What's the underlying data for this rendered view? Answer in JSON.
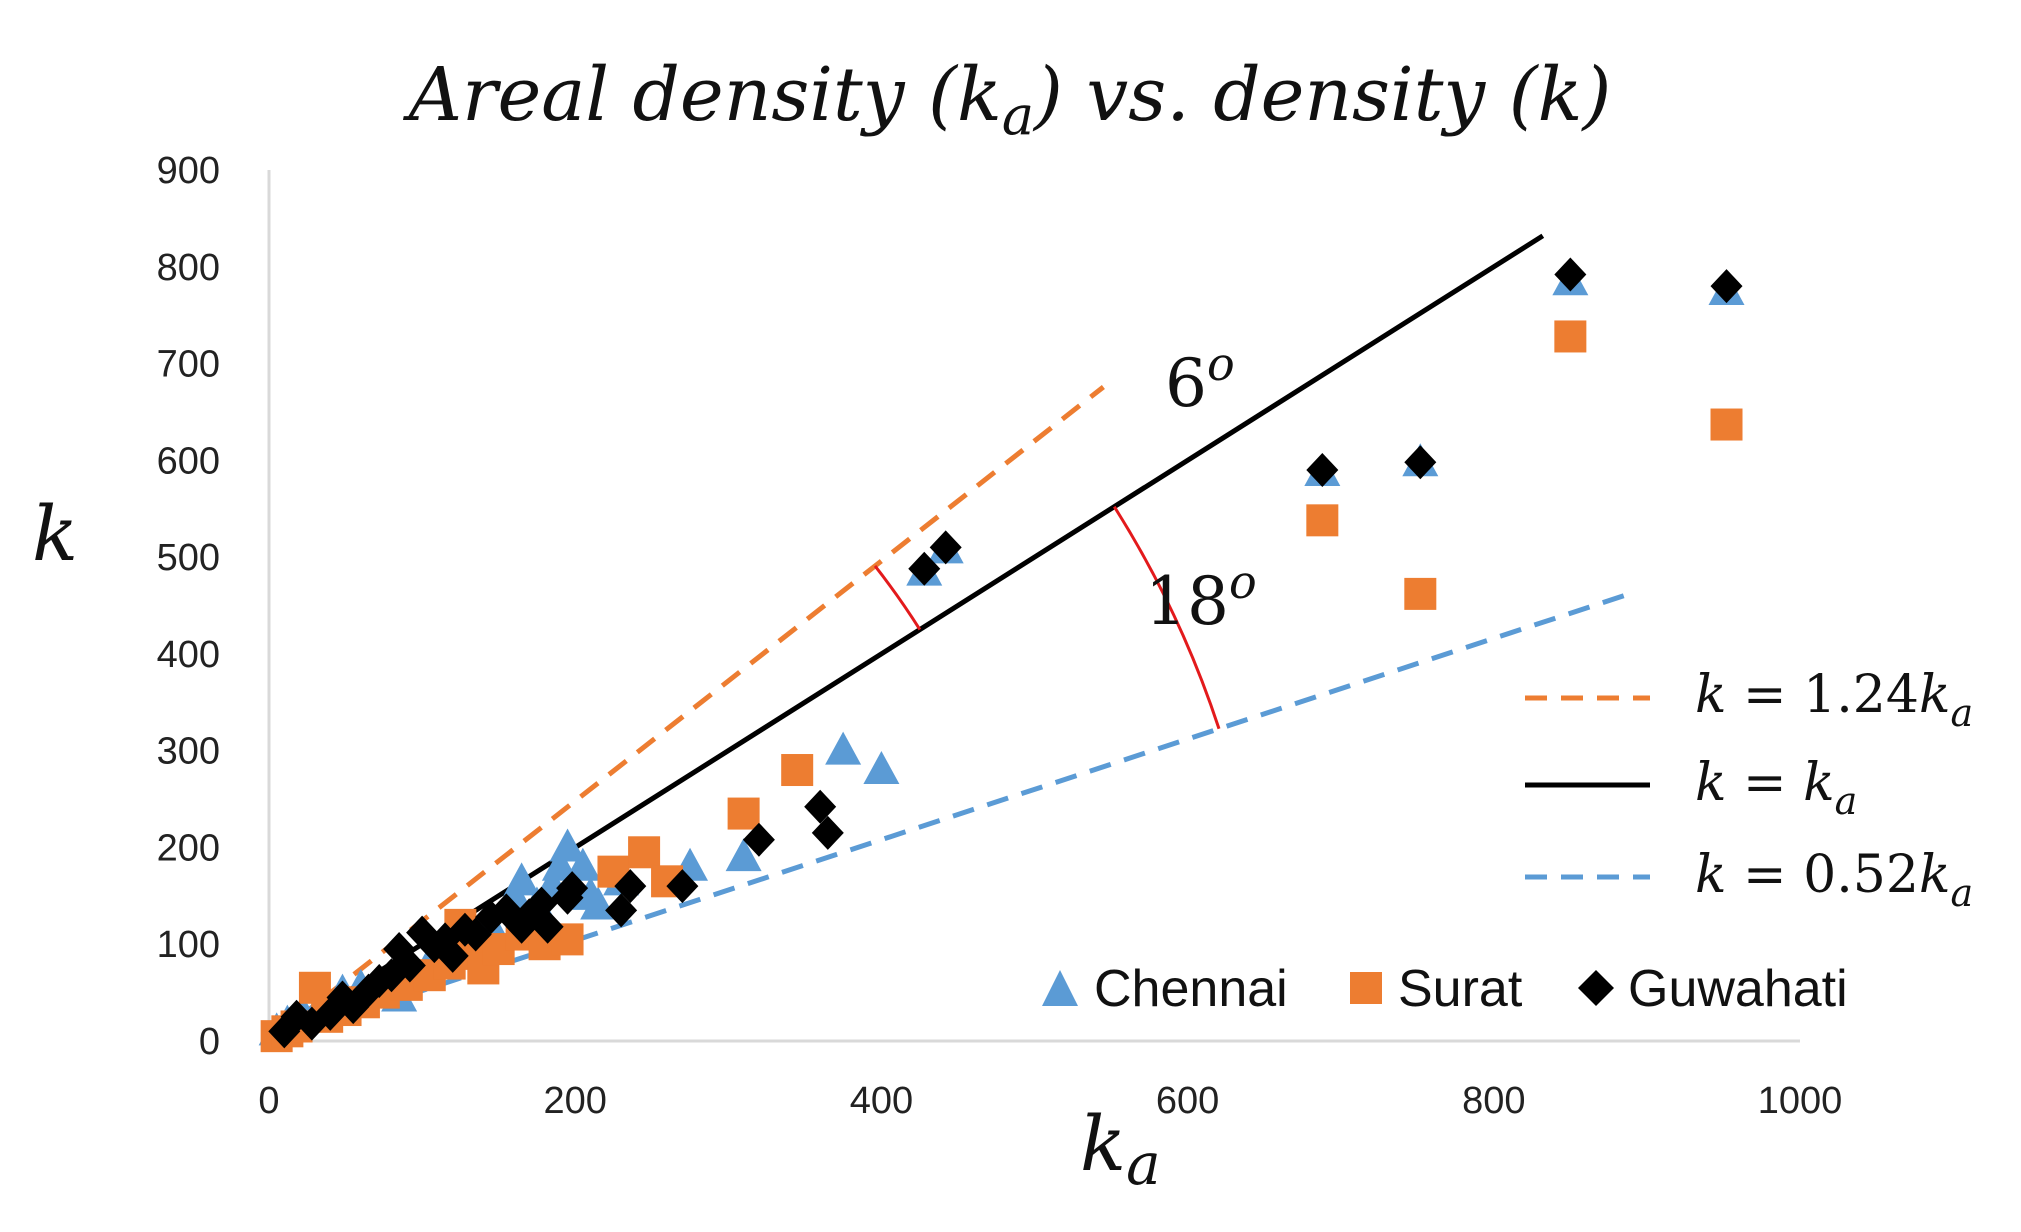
{
  "chart_data": {
    "type": "scatter",
    "title": {
      "main": "Areal density (",
      "var": "k",
      "sub": "a",
      "mid": ") vs. density (",
      "var2": "k",
      "end": ")"
    },
    "xlabel": {
      "var": "k",
      "sub": "a"
    },
    "ylabel": "k",
    "xlim": [
      0,
      1000
    ],
    "ylim": [
      0,
      900
    ],
    "xticks": [
      "0",
      "200",
      "400",
      "600",
      "800",
      "1000"
    ],
    "yticks": [
      "0",
      "100",
      "200",
      "300",
      "400",
      "500",
      "600",
      "700",
      "800",
      "900"
    ],
    "grid": false,
    "series": [
      {
        "name": "Chennai",
        "marker": "triangle",
        "color": "#5B9BD5",
        "points": [
          [
            5,
            10
          ],
          [
            12,
            18
          ],
          [
            22,
            28
          ],
          [
            35,
            40
          ],
          [
            48,
            50
          ],
          [
            60,
            55
          ],
          [
            72,
            60
          ],
          [
            85,
            45
          ],
          [
            95,
            70
          ],
          [
            105,
            80
          ],
          [
            118,
            95
          ],
          [
            130,
            105
          ],
          [
            145,
            118
          ],
          [
            160,
            150
          ],
          [
            165,
            165
          ],
          [
            175,
            140
          ],
          [
            185,
            160
          ],
          [
            190,
            180
          ],
          [
            195,
            200
          ],
          [
            205,
            180
          ],
          [
            210,
            150
          ],
          [
            215,
            140
          ],
          [
            230,
            165
          ],
          [
            275,
            180
          ],
          [
            310,
            190
          ],
          [
            375,
            300
          ],
          [
            400,
            280
          ],
          [
            428,
            485
          ],
          [
            442,
            508
          ],
          [
            850,
            785
          ],
          [
            952,
            775
          ],
          [
            688,
            588
          ],
          [
            752,
            598
          ]
        ]
      },
      {
        "name": "Surat",
        "marker": "square",
        "color": "#ED7D31",
        "points": [
          [
            5,
            5
          ],
          [
            12,
            10
          ],
          [
            18,
            15
          ],
          [
            30,
            55
          ],
          [
            38,
            25
          ],
          [
            50,
            32
          ],
          [
            62,
            40
          ],
          [
            75,
            50
          ],
          [
            90,
            58
          ],
          [
            105,
            68
          ],
          [
            118,
            80
          ],
          [
            125,
            120
          ],
          [
            130,
            90
          ],
          [
            140,
            75
          ],
          [
            150,
            95
          ],
          [
            165,
            110
          ],
          [
            180,
            100
          ],
          [
            195,
            105
          ],
          [
            225,
            175
          ],
          [
            245,
            195
          ],
          [
            260,
            165
          ],
          [
            310,
            235
          ],
          [
            345,
            280
          ],
          [
            688,
            538
          ],
          [
            752,
            462
          ],
          [
            850,
            728
          ],
          [
            952,
            637
          ]
        ]
      },
      {
        "name": "Guwahati",
        "marker": "diamond",
        "color": "#000000",
        "points": [
          [
            10,
            10
          ],
          [
            18,
            25
          ],
          [
            28,
            18
          ],
          [
            40,
            28
          ],
          [
            48,
            45
          ],
          [
            55,
            35
          ],
          [
            65,
            52
          ],
          [
            72,
            62
          ],
          [
            80,
            68
          ],
          [
            85,
            95
          ],
          [
            92,
            78
          ],
          [
            100,
            112
          ],
          [
            108,
            98
          ],
          [
            115,
            105
          ],
          [
            120,
            88
          ],
          [
            128,
            115
          ],
          [
            135,
            110
          ],
          [
            145,
            128
          ],
          [
            155,
            135
          ],
          [
            165,
            118
          ],
          [
            170,
            130
          ],
          [
            178,
            142
          ],
          [
            182,
            118
          ],
          [
            195,
            148
          ],
          [
            198,
            158
          ],
          [
            230,
            135
          ],
          [
            236,
            160
          ],
          [
            270,
            160
          ],
          [
            320,
            208
          ],
          [
            360,
            242
          ],
          [
            365,
            215
          ],
          [
            428,
            488
          ],
          [
            442,
            510
          ],
          [
            688,
            590
          ],
          [
            752,
            598
          ],
          [
            850,
            792
          ],
          [
            952,
            780
          ]
        ]
      }
    ],
    "lines": [
      {
        "name": "k = 1.24k_a",
        "slope": 1.24,
        "x_end": 545,
        "color": "#ED7D31",
        "dash": true,
        "label": {
          "lhs": "k",
          "eq": " = 1.24",
          "var": "k",
          "sub": "a"
        }
      },
      {
        "name": "k = k_a",
        "slope": 1.0,
        "x_end": 832,
        "color": "#000000",
        "dash": false,
        "label": {
          "lhs": "k",
          "eq": " = ",
          "var": "k",
          "sub": "a"
        }
      },
      {
        "name": "k = 0.52k_a",
        "slope": 0.52,
        "x_end": 890,
        "color": "#5B9BD5",
        "dash": true,
        "label": {
          "lhs": "k",
          "eq": " = 0.52",
          "var": "k",
          "sub": "a"
        }
      }
    ],
    "annotations": [
      {
        "type": "angle-arc",
        "text": "6",
        "sup": "o",
        "between": [
          "k = 1.24k_a",
          "k = k_a"
        ],
        "color": "#E31A1C"
      },
      {
        "type": "angle-arc",
        "text": "18",
        "sup": "o",
        "between": [
          "k = k_a",
          "k = 0.52k_a"
        ],
        "color": "#E31A1C"
      }
    ],
    "legend": {
      "position": "right-bottom",
      "series_order": [
        "Chennai",
        "Surat",
        "Guwahati"
      ]
    }
  }
}
